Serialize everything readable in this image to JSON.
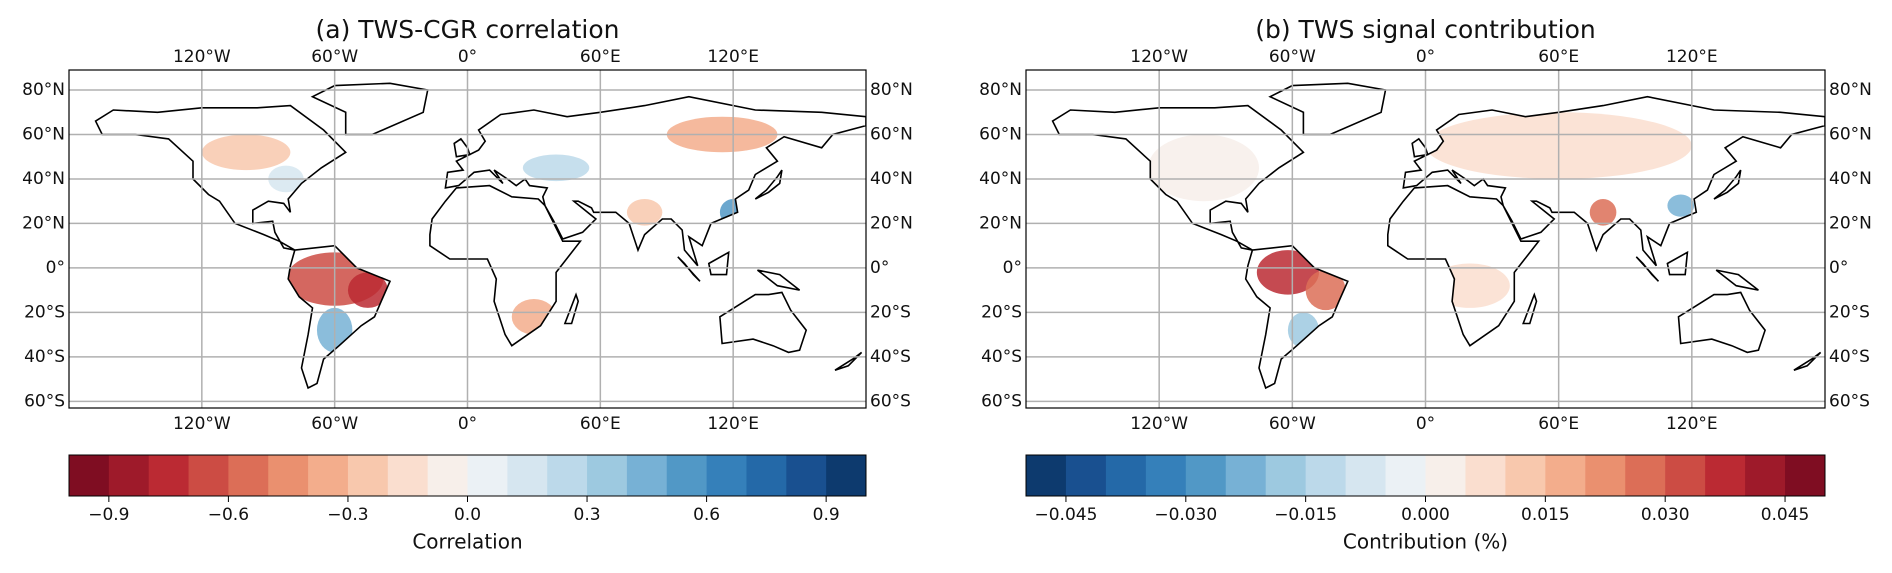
{
  "chart_data": [
    {
      "type": "map",
      "title": "(a) TWS-CGR correlation",
      "grid": true,
      "xlim": [
        -180,
        180
      ],
      "ylim": [
        -63,
        89
      ],
      "xticks": [
        {
          "value": -120,
          "label": "120°W"
        },
        {
          "value": -60,
          "label": "60°W"
        },
        {
          "value": 0,
          "label": "0°"
        },
        {
          "value": 60,
          "label": "60°E"
        },
        {
          "value": 120,
          "label": "120°E"
        }
      ],
      "yticks": [
        {
          "value": 80,
          "label": "80°N"
        },
        {
          "value": 60,
          "label": "60°N"
        },
        {
          "value": 40,
          "label": "40°N"
        },
        {
          "value": 20,
          "label": "20°N"
        },
        {
          "value": 0,
          "label": "0°"
        },
        {
          "value": -20,
          "label": "20°S"
        },
        {
          "value": -40,
          "label": "40°S"
        },
        {
          "value": -60,
          "label": "60°S"
        }
      ],
      "colorbar": {
        "label": "Correlation",
        "lim": [
          -1,
          1
        ],
        "ticks": [
          {
            "value": -0.9,
            "label": "−0.9"
          },
          {
            "value": -0.6,
            "label": "−0.6"
          },
          {
            "value": -0.3,
            "label": "−0.3"
          },
          {
            "value": 0,
            "label": "0.0"
          },
          0.3,
          0.6,
          0.9
        ],
        "colors": [
          "#7f0d22",
          "#9e1a2a",
          "#bb2a33",
          "#cc4c44",
          "#dc6e57",
          "#ea906f",
          "#f3ad8c",
          "#f8c8ad",
          "#fadecf",
          "#f7efea",
          "#ebf1f5",
          "#d6e6f0",
          "#bcd9ea",
          "#9dc9e0",
          "#77b1d5",
          "#5198c6",
          "#3580ba",
          "#2469a8",
          "#195090",
          "#0d3a6e"
        ]
      }
    },
    {
      "type": "map",
      "title": "(b) TWS signal contribution",
      "grid": true,
      "xlim": [
        -180,
        180
      ],
      "ylim": [
        -63,
        89
      ],
      "xticks": [
        {
          "value": -120,
          "label": "120°W"
        },
        {
          "value": -60,
          "label": "60°W"
        },
        {
          "value": 0,
          "label": "0°"
        },
        {
          "value": 60,
          "label": "60°E"
        },
        {
          "value": 120,
          "label": "120°E"
        }
      ],
      "yticks": [
        {
          "value": 80,
          "label": "80°N"
        },
        {
          "value": 60,
          "label": "60°N"
        },
        {
          "value": 40,
          "label": "40°N"
        },
        {
          "value": 20,
          "label": "20°N"
        },
        {
          "value": 0,
          "label": "0°"
        },
        {
          "value": -20,
          "label": "20°S"
        },
        {
          "value": -40,
          "label": "40°S"
        },
        {
          "value": -60,
          "label": "60°S"
        }
      ],
      "colorbar": {
        "label": "Contribution (%)",
        "lim": [
          -0.05,
          0.05
        ],
        "ticks": [
          {
            "value": -0.045,
            "label": "−0.045"
          },
          {
            "value": -0.03,
            "label": "−0.030"
          },
          {
            "value": -0.015,
            "label": "−0.015"
          },
          {
            "value": 0,
            "label": "0.000"
          },
          0.015,
          {
            "value": 0.03,
            "label": "0.030"
          },
          0.045
        ],
        "colors": [
          "#0d3a6e",
          "#195090",
          "#2469a8",
          "#3580ba",
          "#5198c6",
          "#77b1d5",
          "#9dc9e0",
          "#bcd9ea",
          "#d6e6f0",
          "#ebf1f5",
          "#f7efea",
          "#fadecf",
          "#f8c8ad",
          "#f3ad8c",
          "#ea906f",
          "#dc6e57",
          "#cc4c44",
          "#bb2a33",
          "#9e1a2a",
          "#7f0d22"
        ]
      }
    }
  ]
}
